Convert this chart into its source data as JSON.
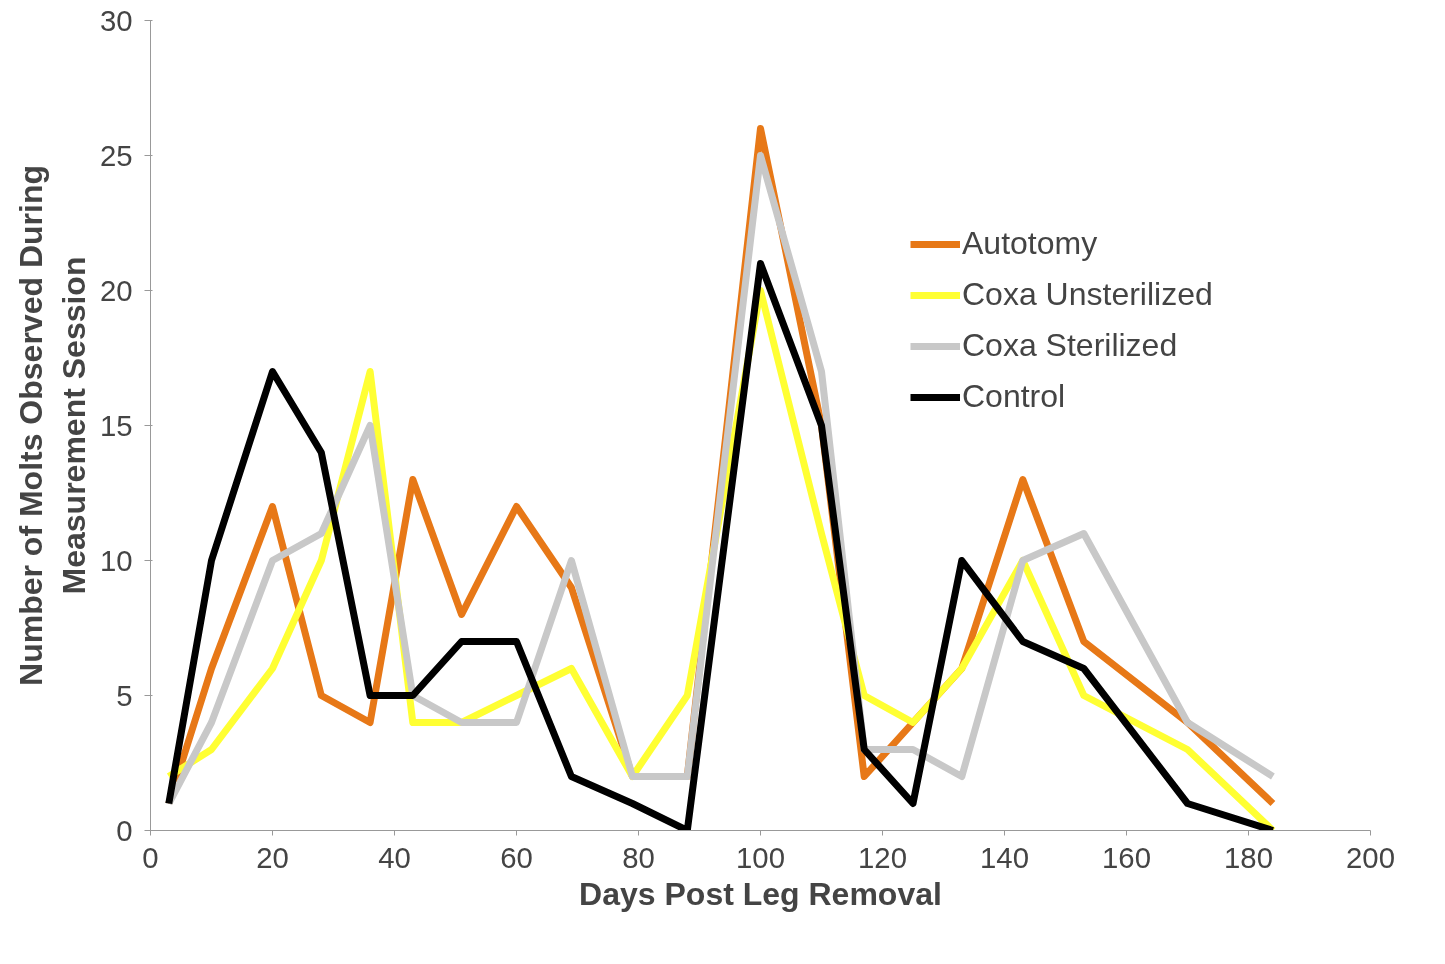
{
  "chart_data": {
    "type": "line",
    "xlabel": "Days Post Leg Removal",
    "ylabel": "Number of Molts Observed During\nMeasurement Session",
    "x": [
      3,
      10,
      20,
      28,
      36,
      43,
      51,
      60,
      69,
      79,
      88,
      100,
      110,
      117,
      125,
      133,
      143,
      153,
      170,
      184
    ],
    "series": [
      {
        "name": "Autotomy",
        "color": "#e77817",
        "values": [
          1,
          6,
          12,
          5,
          4,
          13,
          8,
          12,
          9,
          2,
          2,
          26,
          15,
          2,
          4,
          6,
          13,
          7,
          4,
          1
        ]
      },
      {
        "name": "Coxa Unsterilized",
        "color": "#ffff33",
        "values": [
          2,
          3,
          6,
          10,
          17,
          4,
          4,
          5,
          6,
          2,
          5,
          20,
          11,
          5,
          4,
          6,
          10,
          5,
          3,
          0
        ]
      },
      {
        "name": "Coxa Sterilized",
        "color": "#c8c8c8",
        "values": [
          1,
          4,
          10,
          11,
          15,
          5,
          4,
          4,
          10,
          2,
          2,
          25,
          17,
          3,
          3,
          2,
          10,
          11,
          4,
          2
        ]
      },
      {
        "name": "Control",
        "color": "#000000",
        "values": [
          1,
          10,
          17,
          14,
          5,
          5,
          7,
          7,
          2,
          1,
          0,
          21,
          15,
          3,
          1,
          10,
          7,
          6,
          1,
          0
        ]
      }
    ],
    "xlim": [
      0,
      200
    ],
    "xticks": [
      0,
      20,
      40,
      60,
      80,
      100,
      120,
      140,
      160,
      180,
      200
    ],
    "ylim": [
      0,
      30
    ],
    "yticks": [
      0,
      5,
      10,
      15,
      20,
      25,
      30
    ],
    "grid": false,
    "legend": "top right",
    "marker": "none",
    "line_style": "solid"
  }
}
